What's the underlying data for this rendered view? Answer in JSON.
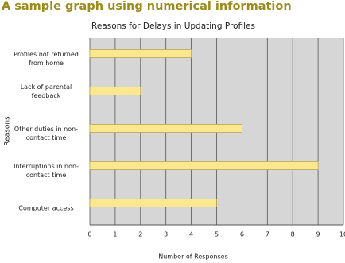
{
  "heading": "A sample graph using numerical information",
  "chart_data": {
    "type": "bar",
    "orientation": "horizontal",
    "title": "Reasons for Delays in Updating Profiles",
    "x_label": "Number of Responses",
    "y_label": "Reasons",
    "categories": [
      "Profiles not returned from home",
      "Lack of parental feedback",
      "Other duties in non-contact time",
      "Interruptions in non-contact time",
      "Computer access"
    ],
    "values": [
      4,
      2,
      6,
      9,
      5
    ],
    "color": "#fbe88e",
    "xlim": [
      0,
      10
    ],
    "xticks": [
      0,
      1,
      2,
      3,
      4,
      5,
      6,
      7,
      8,
      9,
      10
    ],
    "grid": true
  }
}
